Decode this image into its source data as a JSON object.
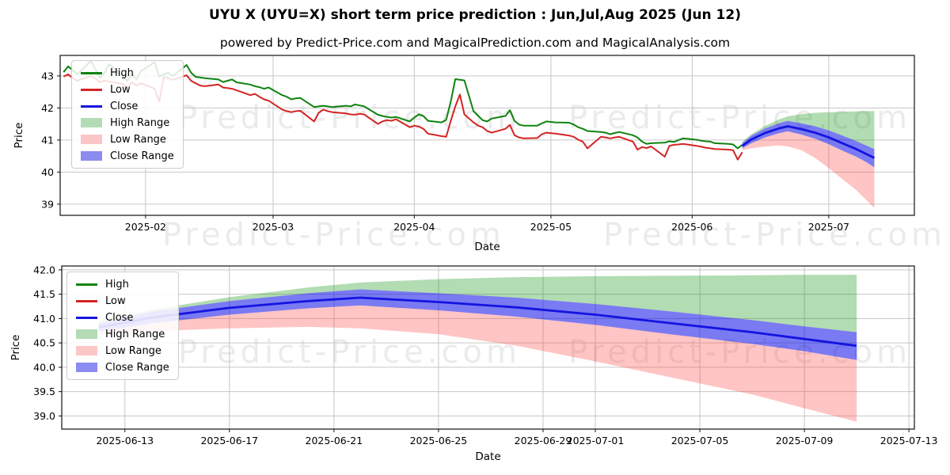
{
  "title": "UYU X (UYU=X) short term price prediction : Jun,Jul,Aug 2025 (Jun 12)",
  "subtitle": "powered by Predict-Price.com and MagicalPrediction.com and MagicalAnalysis.com",
  "watermark": "Predict-Price.com",
  "colors": {
    "high": "#108310",
    "low": "#d42424",
    "close": "#1414e0",
    "high_range_fill": "rgba(0,140,0,0.30)",
    "low_range_fill": "rgba(255,60,60,0.30)",
    "close_range_fill": "rgba(0,0,230,0.52)",
    "grid": "#c6c6c6",
    "frame": "#111111",
    "text": "#000000"
  },
  "legend": [
    {
      "label": "High",
      "swatch": "line",
      "color": "#108310"
    },
    {
      "label": "Low",
      "swatch": "line",
      "color": "#d42424"
    },
    {
      "label": "Close",
      "swatch": "line",
      "color": "#1414e0"
    },
    {
      "label": "High Range",
      "swatch": "patch",
      "color": "#b4dcb4"
    },
    {
      "label": "Low Range",
      "swatch": "patch",
      "color": "#fbc6c6"
    },
    {
      "label": "Close Range",
      "swatch": "patch",
      "color": "#8b8bf0"
    }
  ],
  "forecast": {
    "dates": [
      "2025-06-12",
      "2025-06-14",
      "2025-06-17",
      "2025-06-20",
      "2025-06-22",
      "2025-06-25",
      "2025-06-28",
      "2025-07-01",
      "2025-07-04",
      "2025-07-07",
      "2025-07-09",
      "2025-07-11"
    ],
    "close": [
      40.82,
      41.02,
      41.22,
      41.36,
      41.43,
      41.34,
      41.23,
      41.08,
      40.9,
      40.72,
      40.58,
      40.44
    ],
    "close_upper": [
      40.9,
      41.14,
      41.36,
      41.52,
      41.6,
      41.52,
      41.43,
      41.3,
      41.14,
      40.97,
      40.84,
      40.72
    ],
    "close_lower": [
      40.74,
      40.9,
      41.08,
      41.21,
      41.27,
      41.17,
      41.04,
      40.87,
      40.67,
      40.48,
      40.33,
      40.15
    ],
    "high_upper": [
      40.95,
      41.18,
      41.44,
      41.64,
      41.74,
      41.81,
      41.85,
      41.87,
      41.88,
      41.89,
      41.9,
      41.9
    ],
    "low_lower": [
      40.68,
      40.74,
      40.8,
      40.83,
      40.8,
      40.68,
      40.44,
      40.12,
      39.78,
      39.44,
      39.16,
      38.88
    ]
  },
  "chart_data": [
    {
      "id": "top",
      "type": "line",
      "xlabel": "Date",
      "ylabel": "Price",
      "xlim": [
        "2025-01-13T06:00:00Z",
        "2025-07-19T19:00:00Z"
      ],
      "ylim": [
        38.65,
        43.64
      ],
      "grid": true,
      "legend_position": "upper-left",
      "xticks": [
        {
          "date": "2025-02-01",
          "label": "2025-02"
        },
        {
          "date": "2025-03-01",
          "label": "2025-03"
        },
        {
          "date": "2025-04-01",
          "label": "2025-04"
        },
        {
          "date": "2025-05-01",
          "label": "2025-05"
        },
        {
          "date": "2025-06-01",
          "label": "2025-06"
        },
        {
          "date": "2025-07-01",
          "label": "2025-07"
        }
      ],
      "yticks": [
        {
          "value": 39,
          "label": "39"
        },
        {
          "value": 40,
          "label": "40"
        },
        {
          "value": 41,
          "label": "41"
        },
        {
          "value": 42,
          "label": "42"
        },
        {
          "value": 43,
          "label": "43"
        }
      ],
      "series": {
        "dates": [
          "2025-01-14",
          "2025-01-15",
          "2025-01-16",
          "2025-01-17",
          "2025-01-20",
          "2025-01-21",
          "2025-01-22",
          "2025-01-23",
          "2025-01-24",
          "2025-01-27",
          "2025-01-28",
          "2025-01-29",
          "2025-01-30",
          "2025-01-31",
          "2025-02-03",
          "2025-02-04",
          "2025-02-05",
          "2025-02-06",
          "2025-02-07",
          "2025-02-10",
          "2025-02-11",
          "2025-02-12",
          "2025-02-13",
          "2025-02-14",
          "2025-02-17",
          "2025-02-18",
          "2025-02-19",
          "2025-02-20",
          "2025-02-21",
          "2025-02-24",
          "2025-02-25",
          "2025-02-26",
          "2025-02-27",
          "2025-02-28",
          "2025-03-03",
          "2025-03-04",
          "2025-03-05",
          "2025-03-06",
          "2025-03-07",
          "2025-03-10",
          "2025-03-11",
          "2025-03-12",
          "2025-03-13",
          "2025-03-14",
          "2025-03-17",
          "2025-03-18",
          "2025-03-19",
          "2025-03-20",
          "2025-03-21",
          "2025-03-24",
          "2025-03-25",
          "2025-03-26",
          "2025-03-27",
          "2025-03-28",
          "2025-03-31",
          "2025-04-01",
          "2025-04-02",
          "2025-04-03",
          "2025-04-04",
          "2025-04-07",
          "2025-04-08",
          "2025-04-09",
          "2025-04-10",
          "2025-04-11",
          "2025-04-12",
          "2025-04-14",
          "2025-04-15",
          "2025-04-16",
          "2025-04-17",
          "2025-04-18",
          "2025-04-21",
          "2025-04-22",
          "2025-04-23",
          "2025-04-24",
          "2025-04-25",
          "2025-04-28",
          "2025-04-29",
          "2025-04-30",
          "2025-05-02",
          "2025-05-05",
          "2025-05-06",
          "2025-05-07",
          "2025-05-08",
          "2025-05-09",
          "2025-05-12",
          "2025-05-13",
          "2025-05-14",
          "2025-05-15",
          "2025-05-16",
          "2025-05-19",
          "2025-05-20",
          "2025-05-21",
          "2025-05-22",
          "2025-05-23",
          "2025-05-26",
          "2025-05-27",
          "2025-05-28",
          "2025-05-29",
          "2025-05-30",
          "2025-06-02",
          "2025-06-03",
          "2025-06-04",
          "2025-06-05",
          "2025-06-06",
          "2025-06-09",
          "2025-06-10",
          "2025-06-11",
          "2025-06-12"
        ],
        "high": [
          43.12,
          43.3,
          43.18,
          43.05,
          43.47,
          43.2,
          42.93,
          43.1,
          43.37,
          43.0,
          42.85,
          43.05,
          42.9,
          43.15,
          43.43,
          42.98,
          43.05,
          43.1,
          43.0,
          43.34,
          43.1,
          42.97,
          42.95,
          42.93,
          42.89,
          42.81,
          42.85,
          42.89,
          42.8,
          42.73,
          42.68,
          42.65,
          42.6,
          42.64,
          42.4,
          42.35,
          42.27,
          42.3,
          42.31,
          42.03,
          42.05,
          42.07,
          42.05,
          42.03,
          42.07,
          42.05,
          42.11,
          42.08,
          42.05,
          41.79,
          41.75,
          41.72,
          41.7,
          41.72,
          41.58,
          41.7,
          41.8,
          41.75,
          41.6,
          41.55,
          41.63,
          42.2,
          42.9,
          42.88,
          42.86,
          41.9,
          41.76,
          41.62,
          41.58,
          41.67,
          41.75,
          41.93,
          41.6,
          41.48,
          41.45,
          41.45,
          41.52,
          41.58,
          41.55,
          41.54,
          41.48,
          41.4,
          41.35,
          41.28,
          41.25,
          41.23,
          41.18,
          41.22,
          41.25,
          41.15,
          41.08,
          40.95,
          40.88,
          40.9,
          40.92,
          40.96,
          40.94,
          41.0,
          41.05,
          41.01,
          40.98,
          40.96,
          40.95,
          40.9,
          40.88,
          40.86,
          40.74,
          40.85
        ],
        "low": [
          42.98,
          43.05,
          42.93,
          42.85,
          43.0,
          42.92,
          42.8,
          42.86,
          42.82,
          42.75,
          42.64,
          42.8,
          42.7,
          42.77,
          42.6,
          42.2,
          42.97,
          42.93,
          42.88,
          43.02,
          42.85,
          42.77,
          42.7,
          42.68,
          42.73,
          42.64,
          42.62,
          42.6,
          42.55,
          42.4,
          42.44,
          42.35,
          42.27,
          42.23,
          41.95,
          41.9,
          41.87,
          41.9,
          41.91,
          41.58,
          41.85,
          41.95,
          41.9,
          41.87,
          41.83,
          41.8,
          41.79,
          41.82,
          41.8,
          41.5,
          41.58,
          41.62,
          41.6,
          41.65,
          41.4,
          41.45,
          41.42,
          41.35,
          41.2,
          41.12,
          41.1,
          41.6,
          42.05,
          42.42,
          41.8,
          41.55,
          41.45,
          41.4,
          41.28,
          41.23,
          41.35,
          41.47,
          41.15,
          41.08,
          41.05,
          41.06,
          41.18,
          41.23,
          41.2,
          41.14,
          41.1,
          41.01,
          40.95,
          40.74,
          41.1,
          41.08,
          41.05,
          41.08,
          41.1,
          40.95,
          40.7,
          40.78,
          40.75,
          40.8,
          40.48,
          40.82,
          40.85,
          40.86,
          40.88,
          40.82,
          40.79,
          40.76,
          40.74,
          40.72,
          40.7,
          40.68,
          40.39,
          40.62
        ]
      },
      "show_forecast": true
    },
    {
      "id": "bottom",
      "type": "line",
      "xlabel": "Date",
      "ylabel": "Price",
      "xlim": [
        "2025-06-10T14:00:00Z",
        "2025-07-13T05:00:00Z"
      ],
      "ylim": [
        38.73,
        42.08
      ],
      "grid": true,
      "legend_position": "upper-left",
      "xticks": [
        {
          "date": "2025-06-13",
          "label": "2025-06-13"
        },
        {
          "date": "2025-06-17",
          "label": "2025-06-17"
        },
        {
          "date": "2025-06-21",
          "label": "2025-06-21"
        },
        {
          "date": "2025-06-25",
          "label": "2025-06-25"
        },
        {
          "date": "2025-06-29",
          "label": "2025-06-29"
        },
        {
          "date": "2025-07-01",
          "label": "2025-07-01"
        },
        {
          "date": "2025-07-05",
          "label": "2025-07-05"
        },
        {
          "date": "2025-07-09",
          "label": "2025-07-09"
        },
        {
          "date": "2025-07-13",
          "label": "2025-07-13"
        }
      ],
      "yticks": [
        {
          "value": 39.0,
          "label": "39.0"
        },
        {
          "value": 39.5,
          "label": "39.5"
        },
        {
          "value": 40.0,
          "label": "40.0"
        },
        {
          "value": 40.5,
          "label": "40.5"
        },
        {
          "value": 41.0,
          "label": "41.0"
        },
        {
          "value": 41.5,
          "label": "41.5"
        },
        {
          "value": 42.0,
          "label": "42.0"
        }
      ],
      "series": null,
      "show_forecast": true
    }
  ]
}
